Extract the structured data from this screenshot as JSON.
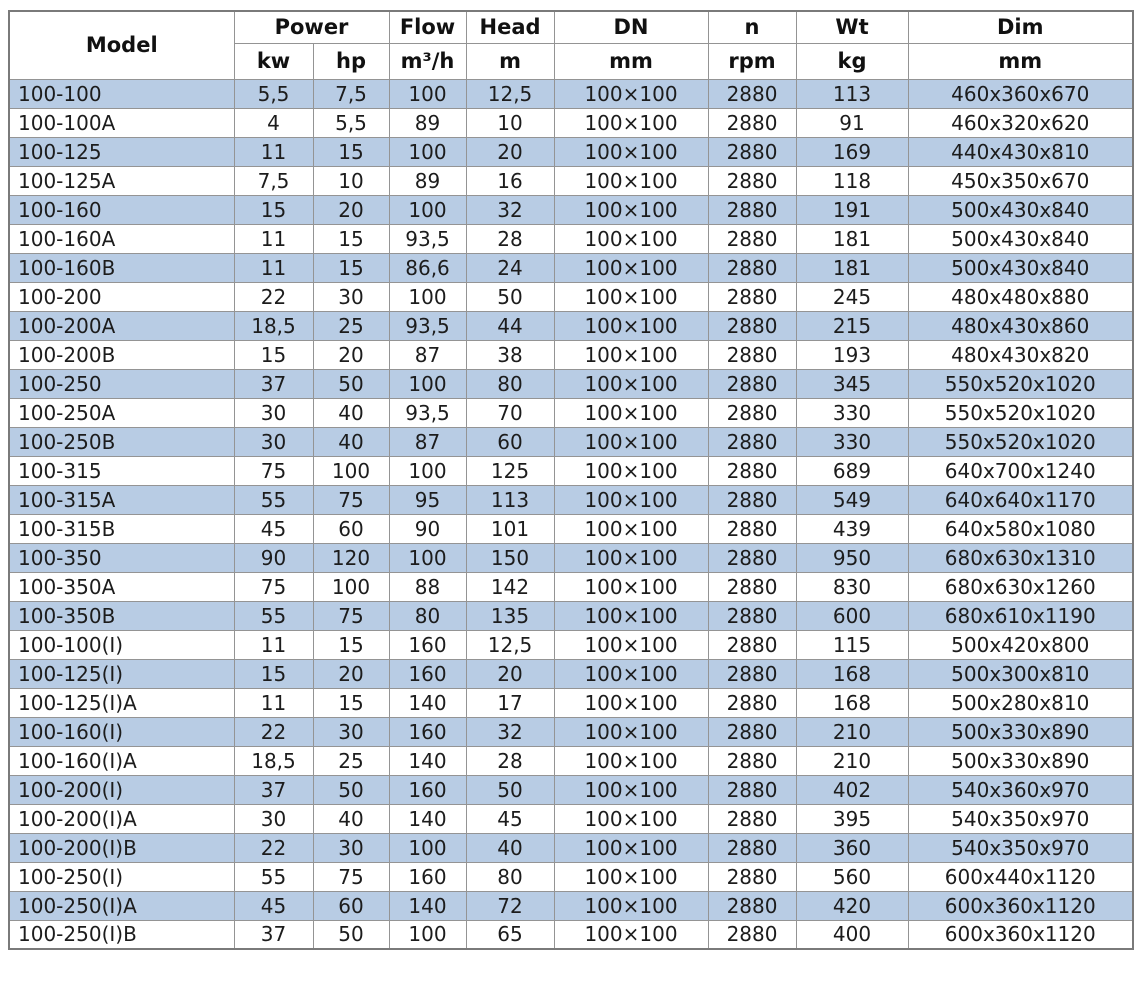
{
  "table": {
    "header": {
      "model": "Model",
      "power": "Power",
      "kw": "kw",
      "hp": "hp",
      "flow": "Flow",
      "flow_unit": "m³/h",
      "head": "Head",
      "head_unit": "m",
      "dn": "DN",
      "dn_unit": "mm",
      "n": "n",
      "n_unit": "rpm",
      "wt": "Wt",
      "wt_unit": "kg",
      "dim": "Dim",
      "dim_unit": "mm"
    },
    "rows": [
      [
        "100-100",
        "5,5",
        "7,5",
        "100",
        "12,5",
        "100×100",
        "2880",
        "113",
        "460x360x670"
      ],
      [
        "100-100A",
        "4",
        "5,5",
        "89",
        "10",
        "100×100",
        "2880",
        "91",
        "460x320x620"
      ],
      [
        "100-125",
        "11",
        "15",
        "100",
        "20",
        "100×100",
        "2880",
        "169",
        "440x430x810"
      ],
      [
        "100-125A",
        "7,5",
        "10",
        "89",
        "16",
        "100×100",
        "2880",
        "118",
        "450x350x670"
      ],
      [
        "100-160",
        "15",
        "20",
        "100",
        "32",
        "100×100",
        "2880",
        "191",
        "500x430x840"
      ],
      [
        "100-160A",
        "11",
        "15",
        "93,5",
        "28",
        "100×100",
        "2880",
        "181",
        "500x430x840"
      ],
      [
        "100-160B",
        "11",
        "15",
        "86,6",
        "24",
        "100×100",
        "2880",
        "181",
        "500x430x840"
      ],
      [
        "100-200",
        "22",
        "30",
        "100",
        "50",
        "100×100",
        "2880",
        "245",
        "480x480x880"
      ],
      [
        "100-200A",
        "18,5",
        "25",
        "93,5",
        "44",
        "100×100",
        "2880",
        "215",
        "480x430x860"
      ],
      [
        "100-200B",
        "15",
        "20",
        "87",
        "38",
        "100×100",
        "2880",
        "193",
        "480x430x820"
      ],
      [
        "100-250",
        "37",
        "50",
        "100",
        "80",
        "100×100",
        "2880",
        "345",
        "550x520x1020"
      ],
      [
        "100-250A",
        "30",
        "40",
        "93,5",
        "70",
        "100×100",
        "2880",
        "330",
        "550x520x1020"
      ],
      [
        "100-250B",
        "30",
        "40",
        "87",
        "60",
        "100×100",
        "2880",
        "330",
        "550x520x1020"
      ],
      [
        "100-315",
        "75",
        "100",
        "100",
        "125",
        "100×100",
        "2880",
        "689",
        "640x700x1240"
      ],
      [
        "100-315A",
        "55",
        "75",
        "95",
        "113",
        "100×100",
        "2880",
        "549",
        "640x640x1170"
      ],
      [
        "100-315B",
        "45",
        "60",
        "90",
        "101",
        "100×100",
        "2880",
        "439",
        "640x580x1080"
      ],
      [
        "100-350",
        "90",
        "120",
        "100",
        "150",
        "100×100",
        "2880",
        "950",
        "680x630x1310"
      ],
      [
        "100-350A",
        "75",
        "100",
        "88",
        "142",
        "100×100",
        "2880",
        "830",
        "680x630x1260"
      ],
      [
        "100-350B",
        "55",
        "75",
        "80",
        "135",
        "100×100",
        "2880",
        "600",
        "680x610x1190"
      ],
      [
        "100-100(I)",
        "11",
        "15",
        "160",
        "12,5",
        "100×100",
        "2880",
        "115",
        "500x420x800"
      ],
      [
        "100-125(I)",
        "15",
        "20",
        "160",
        "20",
        "100×100",
        "2880",
        "168",
        "500x300x810"
      ],
      [
        "100-125(I)A",
        "11",
        "15",
        "140",
        "17",
        "100×100",
        "2880",
        "168",
        "500x280x810"
      ],
      [
        "100-160(I)",
        "22",
        "30",
        "160",
        "32",
        "100×100",
        "2880",
        "210",
        "500x330x890"
      ],
      [
        "100-160(I)A",
        "18,5",
        "25",
        "140",
        "28",
        "100×100",
        "2880",
        "210",
        "500x330x890"
      ],
      [
        "100-200(I)",
        "37",
        "50",
        "160",
        "50",
        "100×100",
        "2880",
        "402",
        "540x360x970"
      ],
      [
        "100-200(I)A",
        "30",
        "40",
        "140",
        "45",
        "100×100",
        "2880",
        "395",
        "540x350x970"
      ],
      [
        "100-200(I)B",
        "22",
        "30",
        "100",
        "40",
        "100×100",
        "2880",
        "360",
        "540x350x970"
      ],
      [
        "100-250(I)",
        "55",
        "75",
        "160",
        "80",
        "100×100",
        "2880",
        "560",
        "600x440x1120"
      ],
      [
        "100-250(I)A",
        "45",
        "60",
        "140",
        "72",
        "100×100",
        "2880",
        "420",
        "600x360x1120"
      ],
      [
        "100-250(I)B",
        "37",
        "50",
        "100",
        "65",
        "100×100",
        "2880",
        "400",
        "600x360x1120"
      ]
    ]
  },
  "colors": {
    "row_alt_blue": "#b8cce4",
    "row_white": "#ffffff",
    "grid_line": "#949494",
    "outer_border": "#7a7a7a",
    "text": "#1c1c1c"
  }
}
